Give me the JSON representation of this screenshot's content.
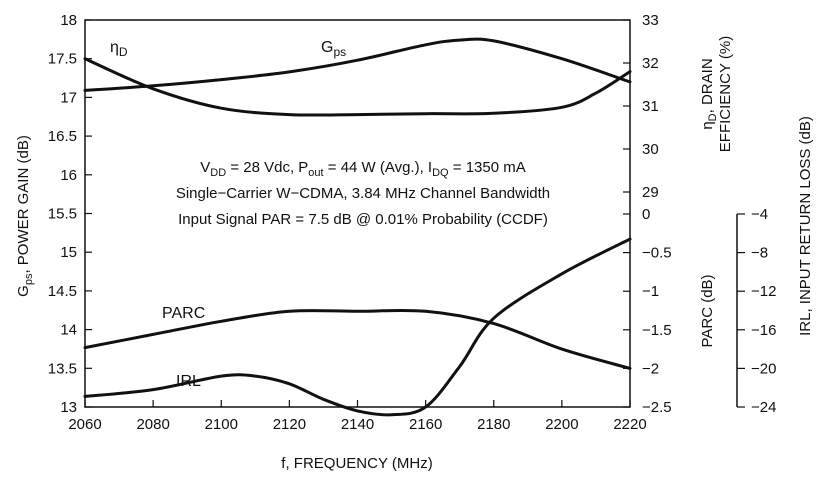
{
  "chart_data": {
    "type": "line",
    "xlabel": "f, FREQUENCY (MHz)",
    "x_ticks": [
      2060,
      2080,
      2100,
      2120,
      2140,
      2160,
      2180,
      2200,
      2220
    ],
    "xlim": [
      2060,
      2220
    ],
    "grid": false,
    "axes": {
      "left": {
        "label": "G_ps, POWER GAIN (dB)",
        "label_main": "G",
        "label_sub": "ps",
        "label_rest": ", POWER GAIN (dB)",
        "ylim": [
          13,
          18
        ],
        "ticks": [
          13,
          13.5,
          14,
          14.5,
          15,
          15.5,
          16,
          16.5,
          17,
          17.5,
          18
        ]
      },
      "right_upper": {
        "label": "η_D, DRAIN EFFICIENCY (%)",
        "label_line1_main": "η",
        "label_line1_sub": "D",
        "label_line1_rest": ", DRAIN",
        "label_line2": "EFFICIENCY (%)",
        "range": [
          29,
          33
        ],
        "ticks": [
          29,
          30,
          31,
          32,
          33
        ]
      },
      "right_lower": {
        "label": "PARC (dB)",
        "range": [
          -2.5,
          0
        ],
        "ticks": [
          -2.5,
          -2,
          -1.5,
          -1,
          -0.5,
          0
        ]
      },
      "far_right": {
        "label": "IRL, INPUT RETURN LOSS (dB)",
        "range": [
          -24,
          -4
        ],
        "ticks": [
          -24,
          -20,
          -16,
          -12,
          -8,
          -4
        ]
      }
    },
    "series": [
      {
        "name": "G_ps",
        "label_main": "G",
        "label_sub": "ps",
        "axis": "left",
        "x": [
          2060,
          2080,
          2100,
          2120,
          2140,
          2160,
          2170,
          2180,
          2200,
          2220
        ],
        "y": [
          17.09,
          17.15,
          17.23,
          17.33,
          17.48,
          17.68,
          17.74,
          17.73,
          17.5,
          17.2
        ]
      },
      {
        "name": "η_D",
        "label_main": "η",
        "label_sub": "D",
        "axis": "right_upper",
        "x": [
          2060,
          2080,
          2100,
          2120,
          2140,
          2160,
          2180,
          2200,
          2210,
          2220
        ],
        "y": [
          32.1,
          31.4,
          30.95,
          30.8,
          30.8,
          30.82,
          30.83,
          30.97,
          31.3,
          31.8
        ]
      },
      {
        "name": "PARC",
        "axis": "right_lower",
        "x": [
          2060,
          2080,
          2100,
          2120,
          2140,
          2160,
          2180,
          2200,
          2220
        ],
        "y": [
          -1.73,
          -1.56,
          -1.39,
          -1.26,
          -1.26,
          -1.26,
          -1.42,
          -1.75,
          -2.0
        ]
      },
      {
        "name": "IRL",
        "axis": "far_right",
        "x": [
          2060,
          2080,
          2100,
          2110,
          2120,
          2130,
          2140,
          2150,
          2160,
          2170,
          2180,
          2200,
          2220
        ],
        "y": [
          -22.9,
          -22.2,
          -20.8,
          -20.8,
          -21.6,
          -23.2,
          -24.4,
          -24.8,
          -24.0,
          -19.8,
          -14.8,
          -10.2,
          -6.6
        ]
      }
    ],
    "annotations": [
      {
        "parts": [
          {
            "t": "V",
            "s": "n"
          },
          {
            "t": "DD",
            "s": "sub"
          },
          {
            "t": " = 28 Vdc, P",
            "s": "n"
          },
          {
            "t": "out",
            "s": "sub"
          },
          {
            "t": " = 44 W (Avg.), I",
            "s": "n"
          },
          {
            "t": "DQ",
            "s": "sub"
          },
          {
            "t": " = 1350 mA",
            "s": "n"
          }
        ]
      },
      {
        "parts": [
          {
            "t": "Single−Carrier W−CDMA, 3.84 MHz Channel Bandwidth",
            "s": "n"
          }
        ]
      },
      {
        "parts": [
          {
            "t": "Input Signal PAR = 7.5 dB @ 0.01% Probability (CCDF)",
            "s": "n"
          }
        ]
      }
    ]
  }
}
